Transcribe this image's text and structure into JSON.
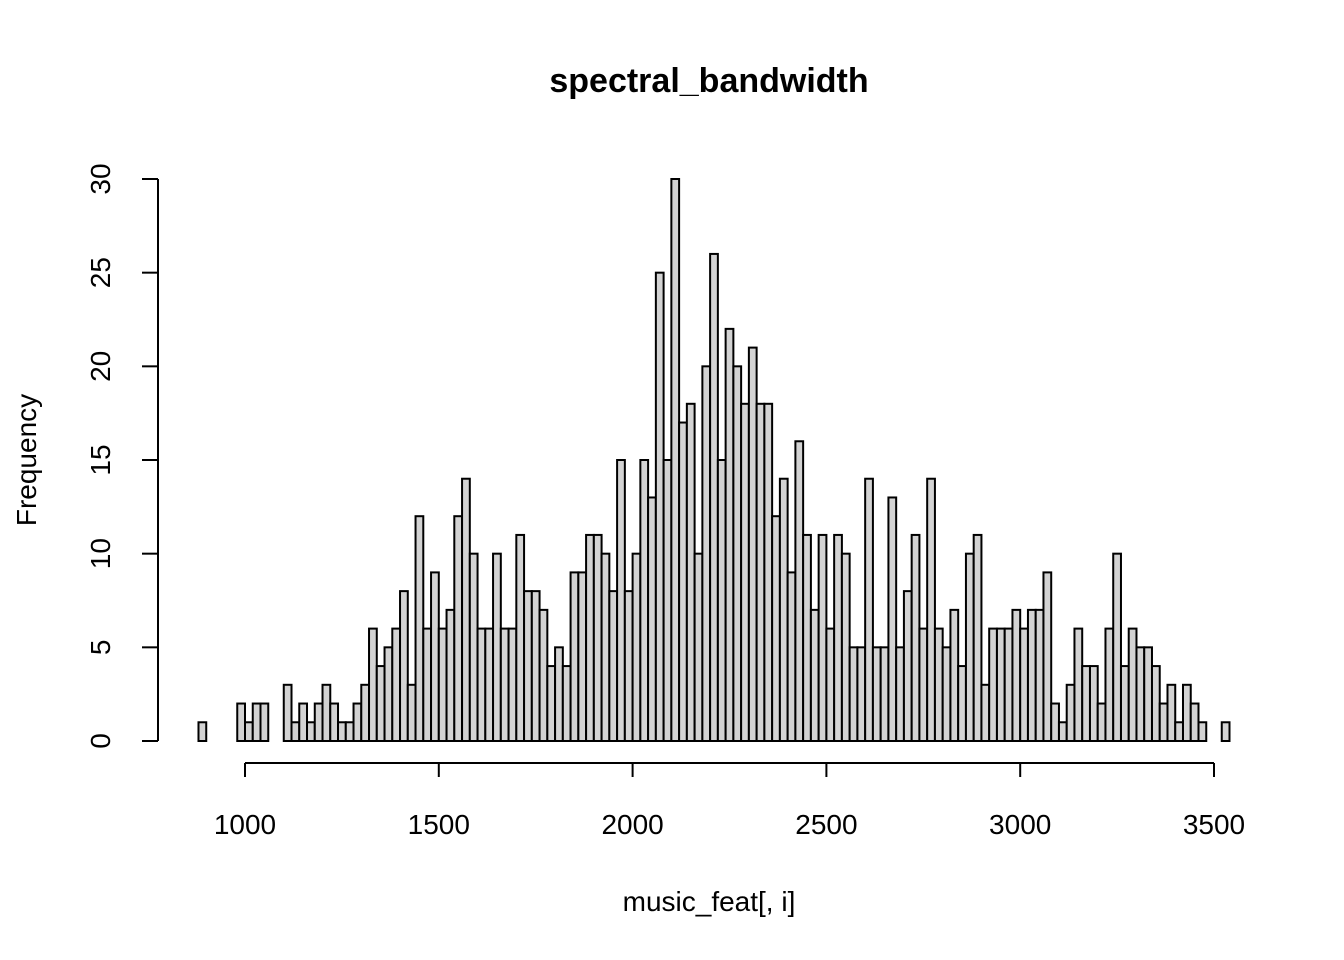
{
  "chart_data": {
    "type": "bar",
    "subtype": "histogram",
    "title": "spectral_bandwidth",
    "xlabel": "music_feat[, i]",
    "ylabel": "Frequency",
    "bin_width": 20,
    "bin_start": 880,
    "xlim": [
      880,
      3520
    ],
    "ylim": [
      0,
      30
    ],
    "x_ticks": [
      1000,
      1500,
      2000,
      2500,
      3000,
      3500
    ],
    "y_ticks": [
      0,
      5,
      10,
      15,
      20,
      25,
      30
    ],
    "x_tick_labels": [
      "1000",
      "1500",
      "2000",
      "2500",
      "3000",
      "3500"
    ],
    "y_tick_labels": [
      "0",
      "5",
      "10",
      "15",
      "20",
      "25",
      "30"
    ],
    "fill_color": "#d3d3d3",
    "edge_color": "#000000",
    "values": [
      1,
      0,
      0,
      0,
      0,
      2,
      1,
      2,
      2,
      0,
      0,
      3,
      1,
      2,
      1,
      2,
      3,
      2,
      1,
      1,
      2,
      3,
      6,
      4,
      5,
      6,
      8,
      3,
      12,
      6,
      9,
      6,
      7,
      12,
      14,
      10,
      6,
      6,
      10,
      6,
      6,
      11,
      8,
      8,
      7,
      4,
      5,
      4,
      9,
      9,
      11,
      11,
      10,
      8,
      15,
      8,
      10,
      15,
      13,
      25,
      15,
      30,
      17,
      18,
      10,
      20,
      26,
      15,
      22,
      20,
      18,
      21,
      18,
      18,
      12,
      14,
      9,
      16,
      11,
      7,
      11,
      6,
      11,
      10,
      5,
      5,
      14,
      5,
      5,
      13,
      5,
      8,
      11,
      6,
      14,
      6,
      5,
      7,
      4,
      10,
      11,
      3,
      6,
      6,
      6,
      7,
      6,
      7,
      7,
      9,
      2,
      1,
      3,
      6,
      4,
      4,
      2,
      6,
      10,
      4,
      6,
      5,
      5,
      4,
      2,
      3,
      1,
      3,
      2,
      1,
      0,
      0,
      1
    ]
  }
}
